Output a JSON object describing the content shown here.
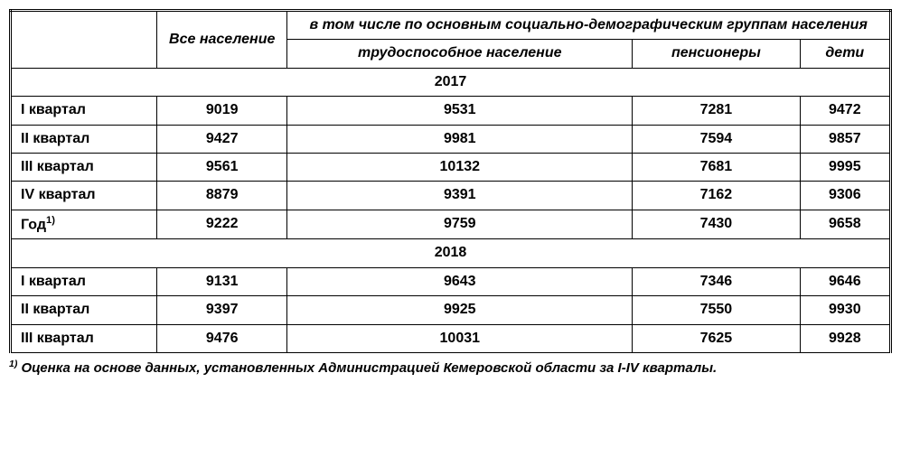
{
  "headers": {
    "col1_blank": "",
    "all_population": "Все население",
    "group_header": "в том числе по основным социально-демографическим группам населения",
    "working": "трудоспособное население",
    "pensioners": "пенсионеры",
    "children": "дети"
  },
  "sections": [
    {
      "year": "2017",
      "rows": [
        {
          "label": "I квартал",
          "all": "9019",
          "working": "9531",
          "pensioners": "7281",
          "children": "9472"
        },
        {
          "label": "II квартал",
          "all": "9427",
          "working": "9981",
          "pensioners": "7594",
          "children": "9857"
        },
        {
          "label": "III квартал",
          "all": "9561",
          "working": "10132",
          "pensioners": "7681",
          "children": "9995"
        },
        {
          "label": "IV квартал",
          "all": "8879",
          "working": "9391",
          "pensioners": "7162",
          "children": "9306"
        },
        {
          "label": "Год",
          "sup": "1)",
          "all": "9222",
          "working": "9759",
          "pensioners": "7430",
          "children": "9658"
        }
      ]
    },
    {
      "year": "2018",
      "rows": [
        {
          "label": "I квартал",
          "all": "9131",
          "working": "9643",
          "pensioners": "7346",
          "children": "9646"
        },
        {
          "label": "II квартал",
          "all": "9397",
          "working": "9925",
          "pensioners": "7550",
          "children": "9930"
        },
        {
          "label": "III квартал",
          "all": "9476",
          "working": "10031",
          "pensioners": "7625",
          "children": "9928"
        }
      ]
    }
  ],
  "footnote": {
    "sup": "1)",
    "text": " Оценка на основе данных, установленных Администрацией Кемеровской области за I-IV кварталы."
  },
  "style": {
    "col_widths": {
      "label": 140,
      "all": 220,
      "group": 205
    },
    "font_family": "Arial Narrow",
    "text_color": "#000000",
    "background_color": "#ffffff",
    "border_color": "#000000",
    "outer_border": "double",
    "font_size_cell": 16,
    "font_size_footnote": 15,
    "header_italic": true,
    "cell_bold": true
  }
}
